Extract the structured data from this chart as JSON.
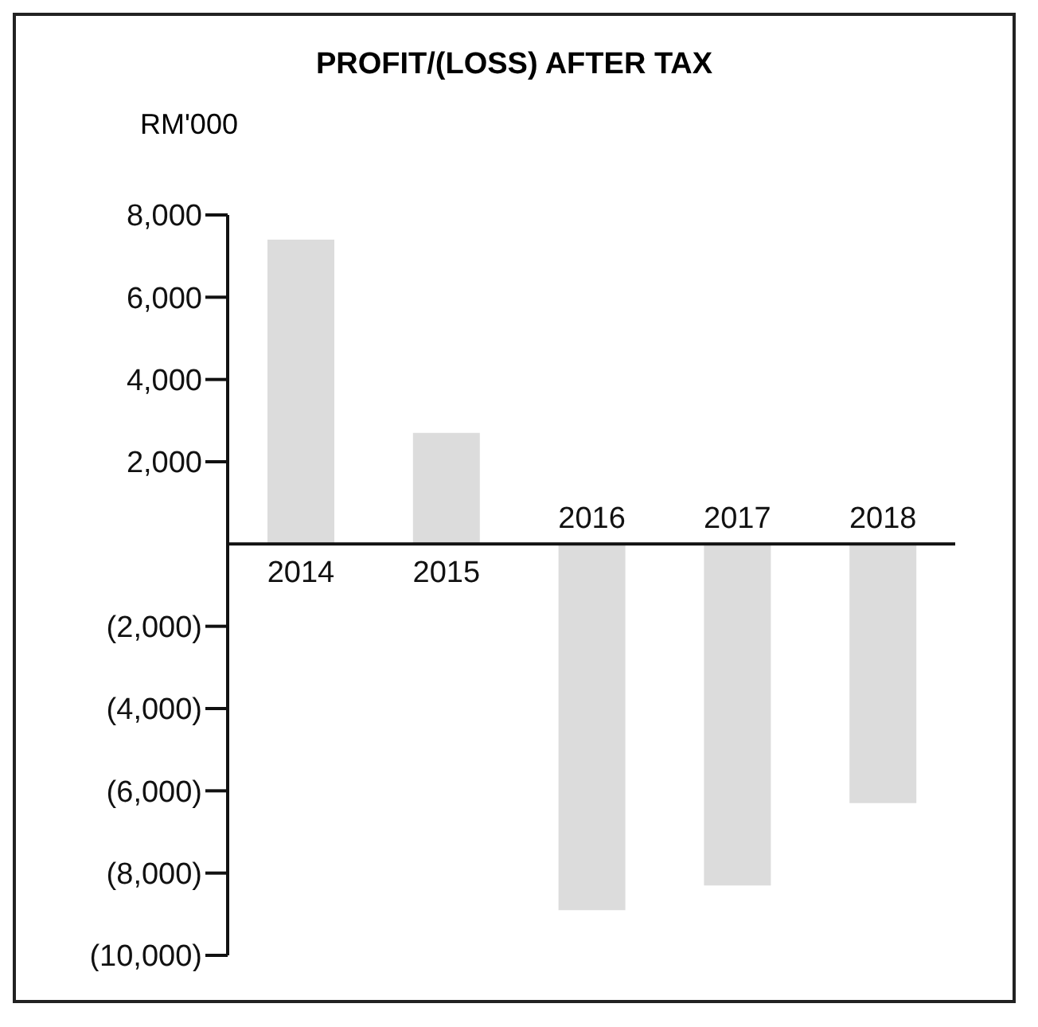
{
  "chart_data": {
    "type": "bar",
    "title": "PROFIT/(LOSS) AFTER TAX",
    "ylabel": "RM'000",
    "categories": [
      "2014",
      "2015",
      "2016",
      "2017",
      "2018"
    ],
    "values": [
      7400,
      2700,
      -8900,
      -8300,
      -6300
    ],
    "color": "#dcdcdc",
    "ylim": [
      -10000,
      8000
    ],
    "yticks": [
      {
        "value": 8000,
        "label": "8,000"
      },
      {
        "value": 6000,
        "label": "6,000"
      },
      {
        "value": 4000,
        "label": "4,000"
      },
      {
        "value": 2000,
        "label": "2,000"
      },
      {
        "value": -2000,
        "label": "(2,000)"
      },
      {
        "value": -4000,
        "label": "(4,000)"
      },
      {
        "value": -6000,
        "label": "(6,000)"
      },
      {
        "value": -8000,
        "label": "(8,000)"
      },
      {
        "value": -10000,
        "label": "(10,000)"
      }
    ],
    "grid": false,
    "legend": false
  }
}
